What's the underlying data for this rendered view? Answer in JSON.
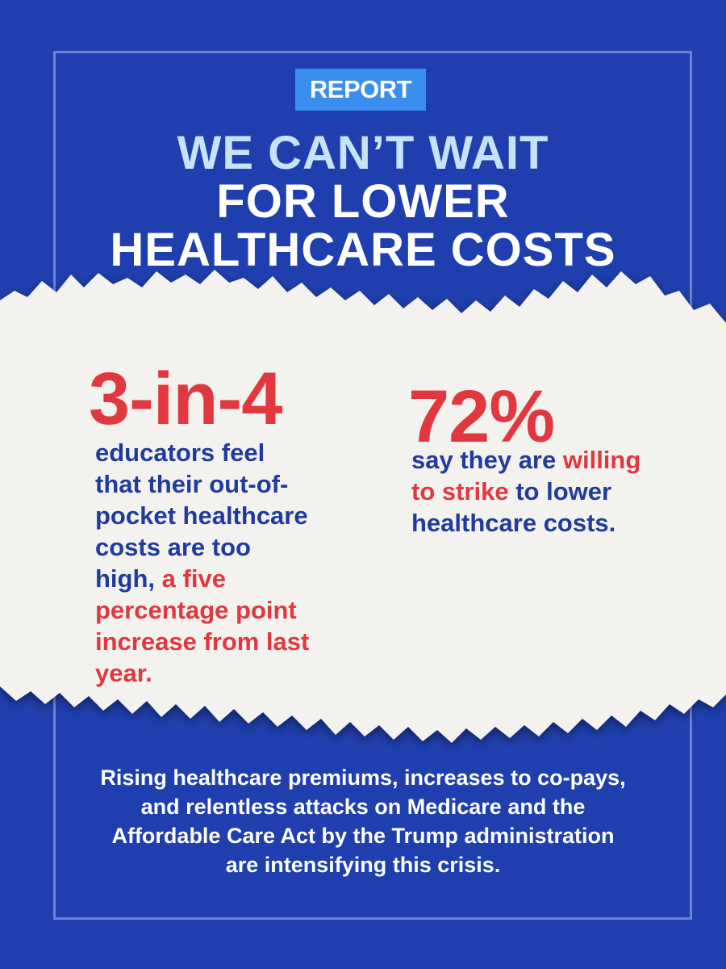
{
  "badge": {
    "label": "REPORT"
  },
  "headline": {
    "line1": "WE CAN’T WAIT",
    "line2": "FOR LOWER",
    "line3": "HEALTHCARE COSTS"
  },
  "stats": [
    {
      "value": "3-in-4",
      "text": "educators feel that their out-of-pocket healthcare costs are too high,",
      "highlight": "a five percentage point increase from last year."
    },
    {
      "value": "72%",
      "text_before": "say they are",
      "highlight": "willing to strike",
      "text_after": "to lower healthcare costs."
    }
  ],
  "footer": {
    "text": "Rising healthcare premiums, increases to co-pays, and relentless attacks on Medicare and the Affordable Care Act by the Trump administration are intensifying this crisis."
  },
  "colors": {
    "background": "#1f3fae",
    "badge": "#3a8ef0",
    "accent_red": "#e0383e",
    "text_blue": "#1f3b9e",
    "headline_light": "#c6e3fb",
    "paper": "#f3f2ef"
  }
}
